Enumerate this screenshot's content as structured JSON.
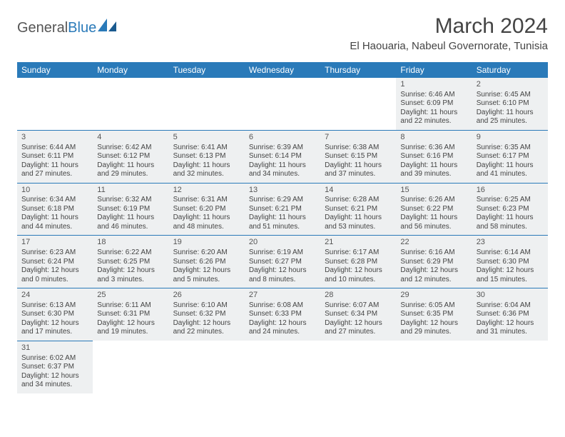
{
  "logo": {
    "part1": "General",
    "part2": "Blue"
  },
  "title": "March 2024",
  "location": "El Haouaria, Nabeul Governorate, Tunisia",
  "colors": {
    "header_bg": "#2a7ab9",
    "row_bg": "#eef0f1",
    "border": "#2a7ab9",
    "text": "#444444"
  },
  "weekdays": [
    "Sunday",
    "Monday",
    "Tuesday",
    "Wednesday",
    "Thursday",
    "Friday",
    "Saturday"
  ],
  "weeks": [
    [
      null,
      null,
      null,
      null,
      null,
      {
        "d": "1",
        "sr": "Sunrise: 6:46 AM",
        "ss": "Sunset: 6:09 PM",
        "dl": "Daylight: 11 hours and 22 minutes."
      },
      {
        "d": "2",
        "sr": "Sunrise: 6:45 AM",
        "ss": "Sunset: 6:10 PM",
        "dl": "Daylight: 11 hours and 25 minutes."
      }
    ],
    [
      {
        "d": "3",
        "sr": "Sunrise: 6:44 AM",
        "ss": "Sunset: 6:11 PM",
        "dl": "Daylight: 11 hours and 27 minutes."
      },
      {
        "d": "4",
        "sr": "Sunrise: 6:42 AM",
        "ss": "Sunset: 6:12 PM",
        "dl": "Daylight: 11 hours and 29 minutes."
      },
      {
        "d": "5",
        "sr": "Sunrise: 6:41 AM",
        "ss": "Sunset: 6:13 PM",
        "dl": "Daylight: 11 hours and 32 minutes."
      },
      {
        "d": "6",
        "sr": "Sunrise: 6:39 AM",
        "ss": "Sunset: 6:14 PM",
        "dl": "Daylight: 11 hours and 34 minutes."
      },
      {
        "d": "7",
        "sr": "Sunrise: 6:38 AM",
        "ss": "Sunset: 6:15 PM",
        "dl": "Daylight: 11 hours and 37 minutes."
      },
      {
        "d": "8",
        "sr": "Sunrise: 6:36 AM",
        "ss": "Sunset: 6:16 PM",
        "dl": "Daylight: 11 hours and 39 minutes."
      },
      {
        "d": "9",
        "sr": "Sunrise: 6:35 AM",
        "ss": "Sunset: 6:17 PM",
        "dl": "Daylight: 11 hours and 41 minutes."
      }
    ],
    [
      {
        "d": "10",
        "sr": "Sunrise: 6:34 AM",
        "ss": "Sunset: 6:18 PM",
        "dl": "Daylight: 11 hours and 44 minutes."
      },
      {
        "d": "11",
        "sr": "Sunrise: 6:32 AM",
        "ss": "Sunset: 6:19 PM",
        "dl": "Daylight: 11 hours and 46 minutes."
      },
      {
        "d": "12",
        "sr": "Sunrise: 6:31 AM",
        "ss": "Sunset: 6:20 PM",
        "dl": "Daylight: 11 hours and 48 minutes."
      },
      {
        "d": "13",
        "sr": "Sunrise: 6:29 AM",
        "ss": "Sunset: 6:21 PM",
        "dl": "Daylight: 11 hours and 51 minutes."
      },
      {
        "d": "14",
        "sr": "Sunrise: 6:28 AM",
        "ss": "Sunset: 6:21 PM",
        "dl": "Daylight: 11 hours and 53 minutes."
      },
      {
        "d": "15",
        "sr": "Sunrise: 6:26 AM",
        "ss": "Sunset: 6:22 PM",
        "dl": "Daylight: 11 hours and 56 minutes."
      },
      {
        "d": "16",
        "sr": "Sunrise: 6:25 AM",
        "ss": "Sunset: 6:23 PM",
        "dl": "Daylight: 11 hours and 58 minutes."
      }
    ],
    [
      {
        "d": "17",
        "sr": "Sunrise: 6:23 AM",
        "ss": "Sunset: 6:24 PM",
        "dl": "Daylight: 12 hours and 0 minutes."
      },
      {
        "d": "18",
        "sr": "Sunrise: 6:22 AM",
        "ss": "Sunset: 6:25 PM",
        "dl": "Daylight: 12 hours and 3 minutes."
      },
      {
        "d": "19",
        "sr": "Sunrise: 6:20 AM",
        "ss": "Sunset: 6:26 PM",
        "dl": "Daylight: 12 hours and 5 minutes."
      },
      {
        "d": "20",
        "sr": "Sunrise: 6:19 AM",
        "ss": "Sunset: 6:27 PM",
        "dl": "Daylight: 12 hours and 8 minutes."
      },
      {
        "d": "21",
        "sr": "Sunrise: 6:17 AM",
        "ss": "Sunset: 6:28 PM",
        "dl": "Daylight: 12 hours and 10 minutes."
      },
      {
        "d": "22",
        "sr": "Sunrise: 6:16 AM",
        "ss": "Sunset: 6:29 PM",
        "dl": "Daylight: 12 hours and 12 minutes."
      },
      {
        "d": "23",
        "sr": "Sunrise: 6:14 AM",
        "ss": "Sunset: 6:30 PM",
        "dl": "Daylight: 12 hours and 15 minutes."
      }
    ],
    [
      {
        "d": "24",
        "sr": "Sunrise: 6:13 AM",
        "ss": "Sunset: 6:30 PM",
        "dl": "Daylight: 12 hours and 17 minutes."
      },
      {
        "d": "25",
        "sr": "Sunrise: 6:11 AM",
        "ss": "Sunset: 6:31 PM",
        "dl": "Daylight: 12 hours and 19 minutes."
      },
      {
        "d": "26",
        "sr": "Sunrise: 6:10 AM",
        "ss": "Sunset: 6:32 PM",
        "dl": "Daylight: 12 hours and 22 minutes."
      },
      {
        "d": "27",
        "sr": "Sunrise: 6:08 AM",
        "ss": "Sunset: 6:33 PM",
        "dl": "Daylight: 12 hours and 24 minutes."
      },
      {
        "d": "28",
        "sr": "Sunrise: 6:07 AM",
        "ss": "Sunset: 6:34 PM",
        "dl": "Daylight: 12 hours and 27 minutes."
      },
      {
        "d": "29",
        "sr": "Sunrise: 6:05 AM",
        "ss": "Sunset: 6:35 PM",
        "dl": "Daylight: 12 hours and 29 minutes."
      },
      {
        "d": "30",
        "sr": "Sunrise: 6:04 AM",
        "ss": "Sunset: 6:36 PM",
        "dl": "Daylight: 12 hours and 31 minutes."
      }
    ],
    [
      {
        "d": "31",
        "sr": "Sunrise: 6:02 AM",
        "ss": "Sunset: 6:37 PM",
        "dl": "Daylight: 12 hours and 34 minutes."
      },
      null,
      null,
      null,
      null,
      null,
      null
    ]
  ]
}
